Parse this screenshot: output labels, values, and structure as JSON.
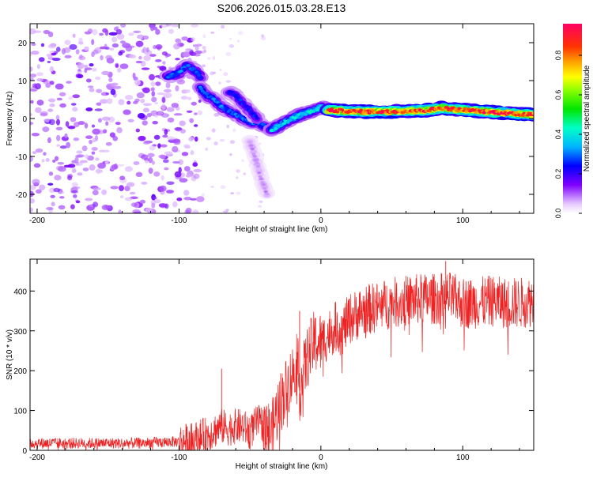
{
  "figure": {
    "title": "S206.2026.015.03.28.E13"
  },
  "chart_data": [
    {
      "type": "heatmap",
      "name": "spectrogram",
      "xlabel": "Height of straight line (km)",
      "ylabel": "Frequency (Hz)",
      "xlim": [
        -205,
        150
      ],
      "ylim": [
        -25,
        25
      ],
      "xticks": [
        -200,
        -100,
        0,
        100
      ],
      "yticks": [
        -20,
        -10,
        0,
        10,
        20
      ],
      "colorbar": {
        "label": "Normalized spectral amplitude",
        "range": [
          0,
          0.96
        ],
        "ticks": [
          0.0,
          0.2,
          0.4,
          0.6,
          0.8
        ],
        "tick_labels": [
          "0.0",
          "0.2",
          "0.4",
          "0.6",
          "0.8"
        ]
      },
      "noise_region": {
        "x": [
          -205,
          -85
        ],
        "y": [
          -25,
          25
        ],
        "amplitude": 0.05
      },
      "features": [
        {
          "name": "early track",
          "x": [
            -108,
            -100,
            -95,
            -90,
            -85
          ],
          "y": [
            11,
            12,
            14,
            13,
            11
          ],
          "amplitude": 0.3
        },
        {
          "name": "descending track A",
          "x": [
            -85,
            -80,
            -75,
            -70,
            -65,
            -60,
            -55,
            -50,
            -45,
            -40,
            -35
          ],
          "y": [
            8,
            6,
            5,
            3,
            2,
            1,
            0,
            -1,
            -1,
            -2,
            -3
          ],
          "amplitude": 0.3
        },
        {
          "name": "descending track B",
          "x": [
            -65,
            -60,
            -55,
            -50,
            -45
          ],
          "y": [
            7,
            6,
            4,
            2,
            0
          ],
          "amplitude": 0.25
        },
        {
          "name": "stray branch",
          "x": [
            -50,
            -45,
            -42,
            -38
          ],
          "y": [
            -6,
            -12,
            -16,
            -20
          ],
          "amplitude": 0.08
        },
        {
          "name": "onset",
          "x": [
            -35,
            -30,
            -25,
            -20,
            -15,
            -10,
            -5,
            0,
            5
          ],
          "y": [
            -3,
            -2,
            -1,
            0,
            1,
            1.5,
            2,
            3,
            2.5
          ],
          "amplitude": 0.4
        },
        {
          "name": "main tone",
          "x": [
            5,
            15,
            30,
            45,
            60,
            75,
            85,
            95,
            110,
            125,
            140,
            150
          ],
          "y": [
            2.2,
            2.0,
            1.8,
            1.8,
            2.0,
            2.2,
            2.8,
            2.4,
            2.0,
            1.6,
            1.2,
            1.0
          ],
          "amplitude": 0.9
        }
      ]
    },
    {
      "type": "line",
      "name": "snr",
      "xlabel": "Height of straight line (km)",
      "ylabel": "SNR (10 * v/v)",
      "xlim": [
        -205,
        150
      ],
      "ylim": [
        0,
        480
      ],
      "xticks": [
        -200,
        -100,
        0,
        100
      ],
      "yticks": [
        0,
        100,
        200,
        300,
        400
      ],
      "color": "#ee2222",
      "series": [
        {
          "name": "SNR",
          "x": [
            -205,
            -190,
            -175,
            -160,
            -145,
            -130,
            -115,
            -100,
            -90,
            -85,
            -80,
            -75,
            -70,
            -65,
            -60,
            -55,
            -50,
            -45,
            -40,
            -35,
            -30,
            -25,
            -20,
            -17,
            -15,
            -10,
            -5,
            0,
            5,
            10,
            15,
            20,
            30,
            40,
            50,
            60,
            70,
            80,
            90,
            100,
            110,
            120,
            130,
            140,
            150
          ],
          "y": [
            18,
            18,
            18,
            18,
            18,
            18,
            20,
            22,
            25,
            35,
            40,
            50,
            60,
            55,
            60,
            60,
            45,
            70,
            65,
            40,
            110,
            150,
            190,
            240,
            150,
            230,
            270,
            270,
            290,
            310,
            300,
            330,
            350,
            360,
            370,
            375,
            380,
            380,
            385,
            370,
            370,
            375,
            370,
            370,
            375
          ]
        }
      ],
      "noise": [
        {
          "x": [
            -205,
            -100
          ],
          "amp": 14
        },
        {
          "x": [
            -100,
            -40
          ],
          "amp": 45
        },
        {
          "x": [
            -40,
            0
          ],
          "amp": 80
        },
        {
          "x": [
            0,
            150
          ],
          "amp": 65
        }
      ],
      "spikes": [
        {
          "x": -70,
          "y": 205
        },
        {
          "x": -15,
          "y": 350
        },
        {
          "x": 88,
          "y": 475
        }
      ]
    }
  ]
}
